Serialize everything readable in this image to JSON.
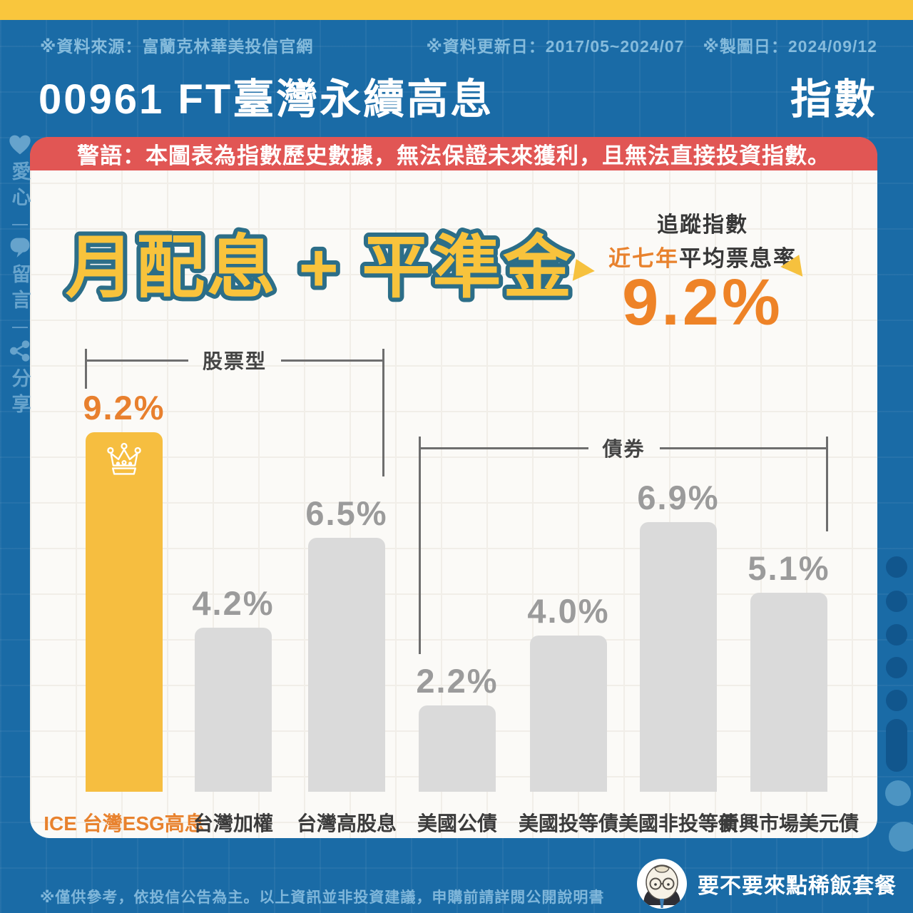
{
  "meta": {
    "source": "※資料來源：富蘭克林華美投信官網",
    "update": "※資料更新日：2017/05~2024/07",
    "chart_date": "※製圖日：2024/09/12"
  },
  "header": {
    "title": "00961 FT臺灣永續高息",
    "title_suffix": "指數"
  },
  "warning": {
    "text": "警語：本圖表為指數歷史數據，無法保證未來獲利，且無法直接投資指數。"
  },
  "hero": {
    "headline": "月配息 + 平準金",
    "tracking_label": "追蹤指數",
    "period": "近七年",
    "metric_label": "平均票息率",
    "rate": "9.2%"
  },
  "chart_data": {
    "type": "bar",
    "categories": [
      "ICE 台灣ESG高息",
      "台灣加權",
      "台灣高股息",
      "美國公債",
      "美國投等債",
      "美國非投等債",
      "新興市場美元債"
    ],
    "values": [
      9.2,
      4.2,
      6.5,
      2.2,
      4.0,
      6.9,
      5.1
    ],
    "value_labels": [
      "9.2%",
      "4.2%",
      "6.5%",
      "2.2%",
      "4.0%",
      "6.9%",
      "5.1%"
    ],
    "unit": "%",
    "ylim": [
      0,
      10
    ],
    "highlight_index": 0,
    "highlight_icon": "crown-icon",
    "groups": [
      {
        "label": "股票型",
        "members": [
          "ICE 台灣ESG高息",
          "台灣加權",
          "台灣高股息"
        ]
      },
      {
        "label": "債券",
        "members": [
          "美國公債",
          "美國投等債",
          "美國非投等債",
          "新興市場美元債"
        ]
      }
    ],
    "colors": {
      "highlight_bar": "#F6BE40",
      "default_bar": "#DADADA",
      "highlight_value": "#E8802E",
      "value_text": "#9B9B9B"
    },
    "grid": "faint square grid on card",
    "legend": "none"
  },
  "sidebar": {
    "items": [
      {
        "icon": "heart-icon",
        "label": "愛心"
      },
      {
        "icon": "comment-icon",
        "label": "留言"
      },
      {
        "icon": "share-icon",
        "label": "分享"
      }
    ]
  },
  "footer": {
    "disclaimer": "※僅供參考，依投信公告為主。以上資訊並非投資建議，申購前請詳閱公開說明書",
    "brand": "要不要來點稀飯套餐"
  },
  "colors": {
    "background_blue": "#1A6BA6",
    "accent_yellow": "#F9C63D",
    "warning_red": "#E15654",
    "accent_orange": "#EE8327",
    "headline_fill": "#F8C33C",
    "headline_stroke": "#2C6E88",
    "card": "#FBFAF7"
  }
}
